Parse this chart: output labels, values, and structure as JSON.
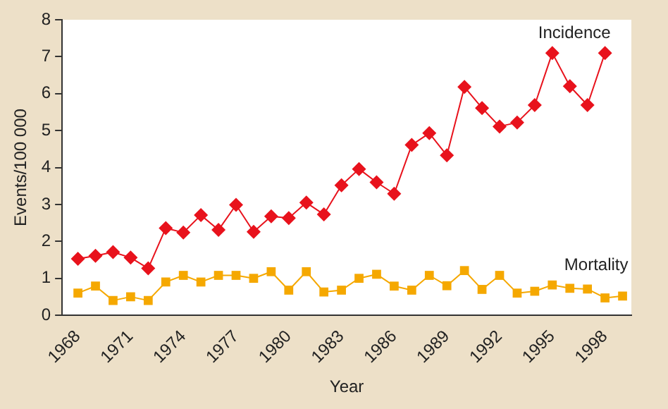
{
  "chart_data": {
    "type": "line",
    "xlabel": "Year",
    "ylabel": "Events/100 000",
    "xlim": [
      1967.1,
      1999.5
    ],
    "xticks": [
      1968,
      1971,
      1974,
      1977,
      1980,
      1983,
      1986,
      1989,
      1992,
      1995,
      1998
    ],
    "ylim": [
      0,
      8
    ],
    "yticks": [
      0,
      1,
      2,
      3,
      4,
      5,
      6,
      7,
      8
    ],
    "grid": false,
    "legend": false,
    "line_style": "solid",
    "series": [
      {
        "name": "Incidence",
        "color": "#e8121c",
        "marker": "diamond",
        "x": [
          1968,
          1969,
          1970,
          1971,
          1972,
          1973,
          1974,
          1975,
          1976,
          1977,
          1978,
          1979,
          1980,
          1981,
          1982,
          1983,
          1984,
          1985,
          1986,
          1987,
          1988,
          1989,
          1990,
          1991,
          1992,
          1993,
          1994,
          1995,
          1996,
          1997,
          1998
        ],
        "values": [
          1.53,
          1.61,
          1.71,
          1.56,
          1.27,
          2.36,
          2.24,
          2.71,
          2.31,
          2.99,
          2.26,
          2.68,
          2.63,
          3.05,
          2.73,
          3.52,
          3.96,
          3.6,
          3.29,
          4.61,
          4.93,
          4.33,
          6.18,
          5.61,
          5.11,
          5.22,
          5.69,
          7.1,
          6.2,
          5.69,
          7.1
        ]
      },
      {
        "name": "Mortality",
        "color": "#f5a800",
        "marker": "square",
        "x": [
          1968,
          1969,
          1970,
          1971,
          1972,
          1973,
          1974,
          1975,
          1976,
          1977,
          1978,
          1979,
          1980,
          1981,
          1982,
          1983,
          1984,
          1985,
          1986,
          1987,
          1988,
          1989,
          1990,
          1991,
          1992,
          1993,
          1994,
          1995,
          1996,
          1997,
          1998,
          1999
        ],
        "values": [
          0.6,
          0.79,
          0.4,
          0.5,
          0.4,
          0.9,
          1.08,
          0.9,
          1.08,
          1.08,
          1.0,
          1.18,
          0.68,
          1.18,
          0.63,
          0.68,
          1.0,
          1.11,
          0.79,
          0.68,
          1.08,
          0.8,
          1.21,
          0.7,
          1.08,
          0.6,
          0.65,
          0.82,
          0.73,
          0.71,
          0.47,
          0.52
        ]
      }
    ]
  }
}
